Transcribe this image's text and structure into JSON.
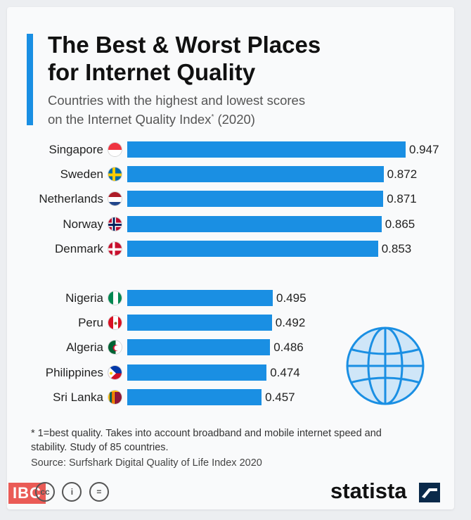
{
  "header": {
    "title_line1": "The Best & Worst Places",
    "title_line2": "for Internet Quality",
    "subtitle_line1": "Countries with the highest and lowest scores",
    "subtitle_line2_prefix": "on the Internet Quality Index",
    "subtitle_line2_marker": "*",
    "subtitle_line2_suffix": " (2020)"
  },
  "chart_data": {
    "type": "bar",
    "orientation": "horizontal",
    "groups": [
      {
        "categories": [
          "Singapore",
          "Sweden",
          "Netherlands",
          "Norway",
          "Denmark"
        ],
        "values": [
          0.947,
          0.872,
          0.871,
          0.865,
          0.853
        ]
      },
      {
        "categories": [
          "Nigeria",
          "Peru",
          "Algeria",
          "Philippines",
          "Sri Lanka"
        ],
        "values": [
          0.495,
          0.492,
          0.486,
          0.474,
          0.457
        ]
      }
    ],
    "value_labels": [
      "0.947",
      "0.872",
      "0.871",
      "0.865",
      "0.853",
      "0.495",
      "0.492",
      "0.486",
      "0.474",
      "0.457"
    ],
    "xlim": [
      0,
      0.947
    ],
    "bar_color": "#1a8fe3",
    "grid": false,
    "legend": "none"
  },
  "flags": [
    "singapore-flag-icon",
    "sweden-flag-icon",
    "netherlands-flag-icon",
    "norway-flag-icon",
    "denmark-flag-icon",
    "nigeria-flag-icon",
    "peru-flag-icon",
    "algeria-flag-icon",
    "philippines-flag-icon",
    "sri-lanka-flag-icon"
  ],
  "footer": {
    "footnote_line1": "* 1=best quality. Takes into account broadband and mobile internet speed and",
    "footnote_line2": "stability. Study of 85 countries.",
    "source": "Source: Surfshark Digital Quality of Life Index 2020",
    "brand": "statista",
    "watermark": "IBC",
    "license_icons": [
      "cc",
      "i",
      "="
    ]
  },
  "colors": {
    "accent": "#1a8fe3",
    "globe": "#1a8fe3"
  }
}
